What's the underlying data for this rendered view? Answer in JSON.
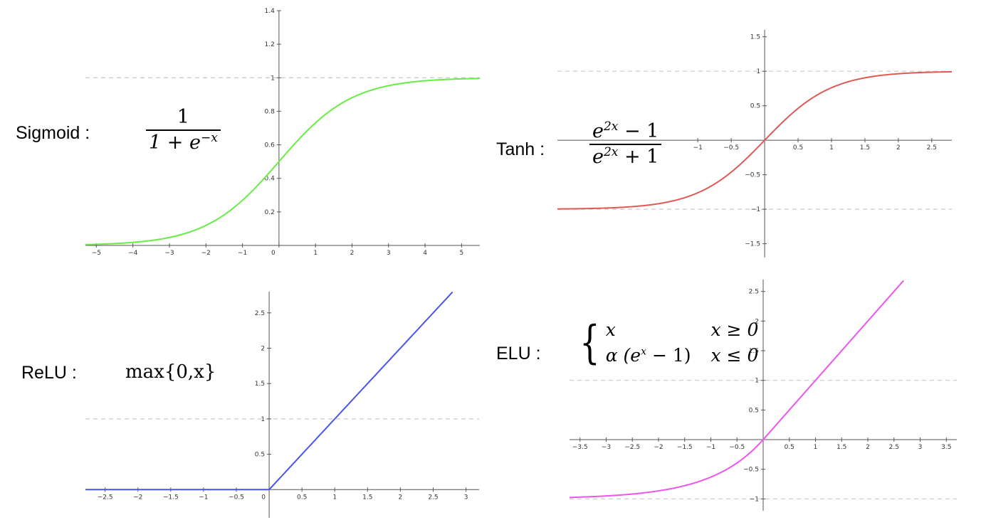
{
  "labels": {
    "sigmoid": "Sigmoid :",
    "tanh": "Tanh :",
    "relu": "ReLU :",
    "elu": "ELU :"
  },
  "formulas": {
    "sigmoid_num": "1",
    "sigmoid_den_base": "1 + e",
    "sigmoid_den_exp": "−x",
    "tanh_num_base": "e",
    "tanh_num_exp": "2x",
    "tanh_num_tail": " − 1",
    "tanh_den_base": "e",
    "tanh_den_exp": "2x",
    "tanh_den_tail": " + 1",
    "relu": "max{0,x}",
    "elu_case1_expr": "x",
    "elu_case1_cond": "x ≥ 0",
    "elu_case2_pre": "α (e",
    "elu_case2_exp": "x",
    "elu_case2_post": " − 1)",
    "elu_case2_cond": "x ≤ 0"
  },
  "chart_data": [
    {
      "type": "line",
      "name": "sigmoid",
      "function": "sigmoid",
      "color": "#66ee44",
      "xlim": [
        -5.3,
        5.5
      ],
      "ylim": [
        0,
        1.4
      ],
      "xticks": [
        -5,
        -4,
        -3,
        -2,
        -1,
        0,
        1,
        2,
        3,
        4,
        5
      ],
      "xtick_labels": [
        "−5",
        "−4",
        "−3",
        "−2",
        "−1",
        "0",
        "1",
        "2",
        "3",
        "4",
        "5"
      ],
      "yticks": [
        0.2,
        0.4,
        0.6,
        0.8,
        1,
        1.2,
        1.4
      ],
      "ytick_labels": [
        "0.2",
        "0.4",
        "0.6",
        "0.8",
        "1",
        "1.2",
        "1.4"
      ],
      "reference_lines": [
        1
      ]
    },
    {
      "type": "line",
      "name": "tanh",
      "function": "tanh",
      "color": "#e05a55",
      "xlim": [
        -3.1,
        2.8
      ],
      "ylim": [
        -1.7,
        1.6
      ],
      "xticks": [
        -1,
        -0.5,
        0.5,
        1,
        1.5,
        2,
        2.5
      ],
      "xtick_labels": [
        "−1",
        "−0.5",
        "0.5",
        "1",
        "1.5",
        "2",
        "2.5"
      ],
      "yticks": [
        1.5,
        1,
        0.5,
        -0.5,
        -1,
        -1.5
      ],
      "ytick_labels": [
        "1.5",
        "1",
        "0.5",
        "−0.5",
        "−1",
        "−1.5"
      ],
      "reference_lines": [
        1,
        -1
      ]
    },
    {
      "type": "line",
      "name": "relu",
      "function": "relu",
      "color": "#4a55ee",
      "xlim": [
        -2.8,
        3.2
      ],
      "ylim": [
        -0.4,
        2.8
      ],
      "xticks": [
        -2.5,
        -2,
        -1.5,
        -1,
        -0.5,
        0,
        0.5,
        1,
        1.5,
        2,
        2.5,
        3
      ],
      "xtick_labels": [
        "−2.5",
        "−2",
        "−1.5",
        "−1",
        "−0.5",
        "0",
        "0.5",
        "1",
        "1.5",
        "2",
        "2.5",
        "3"
      ],
      "yticks": [
        0.5,
        1,
        1.5,
        2,
        2.5
      ],
      "ytick_labels": [
        "0.5",
        "1",
        "1.5",
        "2",
        "2.5"
      ],
      "reference_lines": [
        1
      ]
    },
    {
      "type": "line",
      "name": "elu",
      "function": "elu",
      "alpha": 1,
      "color": "#ee55ee",
      "xlim": [
        -3.7,
        3.7
      ],
      "ylim": [
        -1.2,
        2.7
      ],
      "xticks": [
        -3.5,
        -3,
        -2.5,
        -2,
        -1.5,
        -1,
        -0.5,
        0.5,
        1,
        1.5,
        2,
        2.5,
        3,
        3.5
      ],
      "xtick_labels": [
        "−3.5",
        "−3",
        "−2.5",
        "−2",
        "−1.5",
        "−1",
        "−0.5",
        "0.5",
        "1",
        "1.5",
        "2",
        "2.5",
        "3",
        "3.5"
      ],
      "yticks": [
        2.5,
        2,
        1.5,
        1,
        0.5,
        -0.5,
        -1
      ],
      "ytick_labels": [
        "2.5",
        "2",
        "1.5",
        "1",
        "0.5",
        "−0.5",
        "−1"
      ],
      "reference_lines": [
        1,
        -1
      ]
    }
  ]
}
